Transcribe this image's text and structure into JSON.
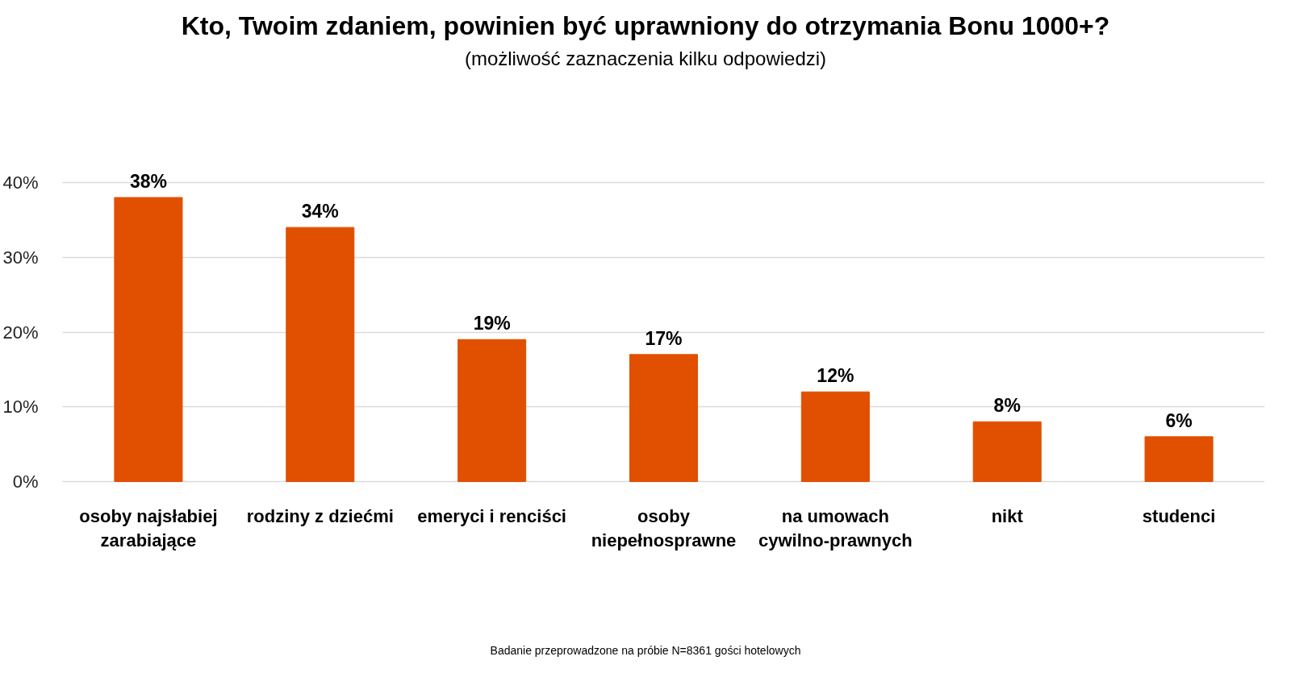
{
  "chart_data": {
    "type": "bar",
    "title": "Kto, Twoim zdaniem, powinien być uprawniony do otrzymania Bonu 1000+?",
    "subtitle": "(możliwość zaznaczenia kilku odpowiedzi)",
    "categories": [
      "osoby najsłabiej zarabiające",
      "rodziny z dziećmi",
      "emeryci i renciści",
      "osoby niepełnosprawne",
      "na umowach cywilno-prawnych",
      "nikt",
      "studenci"
    ],
    "values": [
      38,
      34,
      19,
      17,
      12,
      8,
      6
    ],
    "value_labels": [
      "38%",
      "34%",
      "19%",
      "17%",
      "12%",
      "8%",
      "6%"
    ],
    "color": "#e05000",
    "ylim": [
      0,
      40
    ],
    "yticks": [
      {
        "value": 0,
        "label": "0%"
      },
      {
        "value": 10,
        "label": "10%"
      },
      {
        "value": 20,
        "label": "20%"
      },
      {
        "value": 30,
        "label": "30%"
      },
      {
        "value": 40,
        "label": "40%"
      }
    ],
    "grid": "y",
    "annotations": [
      "Badanie przeprowadzone na próbie N=8361 gości hotelowych"
    ]
  }
}
